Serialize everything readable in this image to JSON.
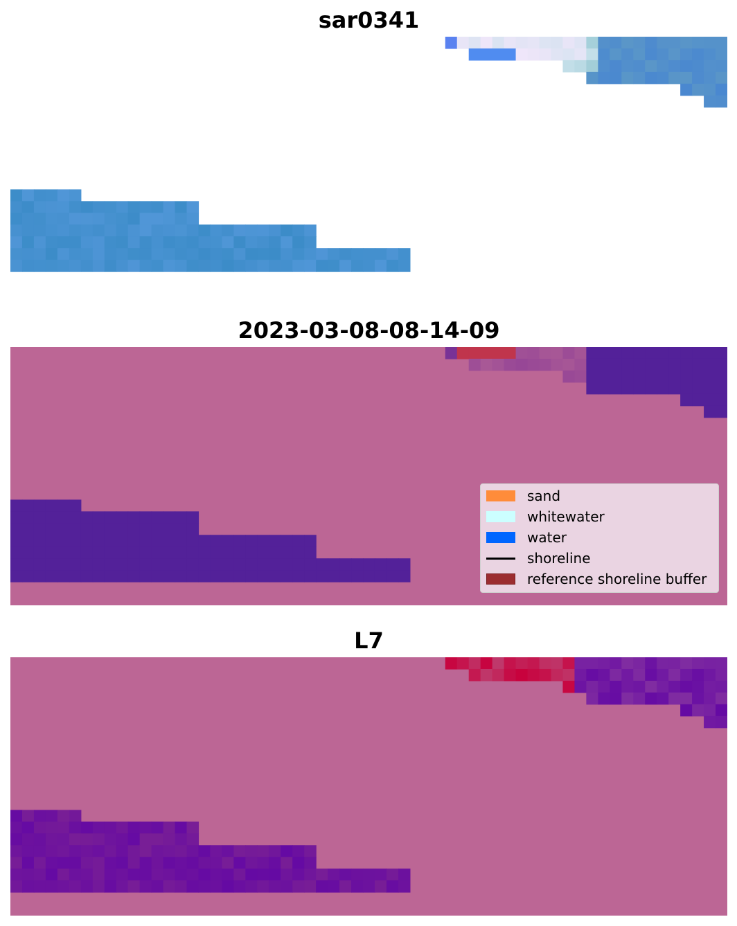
{
  "panels": [
    {
      "title": "sar0341"
    },
    {
      "title": "2023-03-08-08-14-09"
    },
    {
      "title": "L7"
    }
  ],
  "legend": {
    "items": [
      {
        "label": "sand",
        "color": "#ff8c3a",
        "kind": "patch"
      },
      {
        "label": "whitewater",
        "color": "#ccffff",
        "kind": "patch"
      },
      {
        "label": "water",
        "color": "#0066ff",
        "kind": "patch"
      },
      {
        "label": "shoreline",
        "color": "#000000",
        "kind": "line"
      },
      {
        "label": "reference shoreline buffer",
        "color": "#9b2d30",
        "kind": "patch"
      }
    ]
  },
  "colors": {
    "background": "#ffffff",
    "mask_pink": "#bc6695",
    "water_purple": "#532199",
    "l7_water": "#650aa3",
    "buffer_red": "#c0354c",
    "sar_blue": "#4a88d0"
  }
}
